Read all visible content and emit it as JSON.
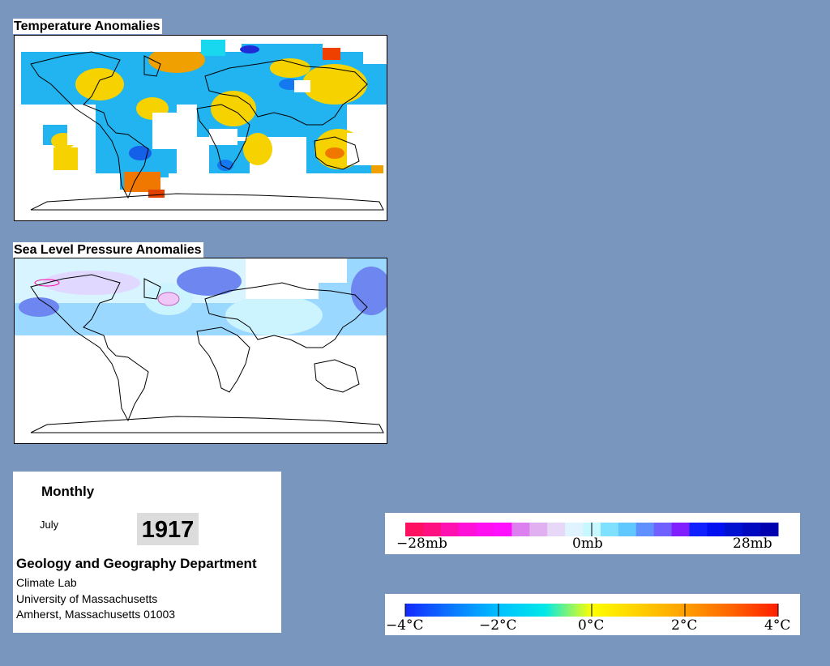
{
  "temperature_panel": {
    "title": "Temperature Anomalies"
  },
  "pressure_panel": {
    "title": "Sea Level Pressure Anomalies"
  },
  "info": {
    "period": "Monthly",
    "month": "July",
    "year": "1917",
    "department": "Geology and Geography Department",
    "lab": "Climate Lab",
    "university": "University of Massachusetts",
    "address": "Amherst, Massachusetts 01003"
  },
  "pressure_legend": {
    "labels": [
      "−28mb",
      "0mb",
      "28mb"
    ],
    "colors": [
      "#ff1060",
      "#ff1080",
      "#ff10b0",
      "#ff10d8",
      "#ff10f0",
      "#ff10ff",
      "#dc80f0",
      "#e0b0f0",
      "#e8d8f8",
      "#e0f4ff",
      "#c8f8ff",
      "#80e0ff",
      "#60c8ff",
      "#6090ff",
      "#7060ff",
      "#8020ff",
      "#1020ff",
      "#0010f0",
      "#0010d0",
      "#0008c0",
      "#0000b0"
    ]
  },
  "temperature_legend": {
    "labels": [
      "−4°C",
      "−2°C",
      "0°C",
      "2°C",
      "4°C"
    ],
    "colors": [
      "#1428ff",
      "#0a78ff",
      "#00c0ff",
      "#00e8e8",
      "#ffff00",
      "#ffd000",
      "#ffa000",
      "#ff6400",
      "#ff1e00"
    ]
  },
  "colors": {
    "background": "#7896be"
  }
}
